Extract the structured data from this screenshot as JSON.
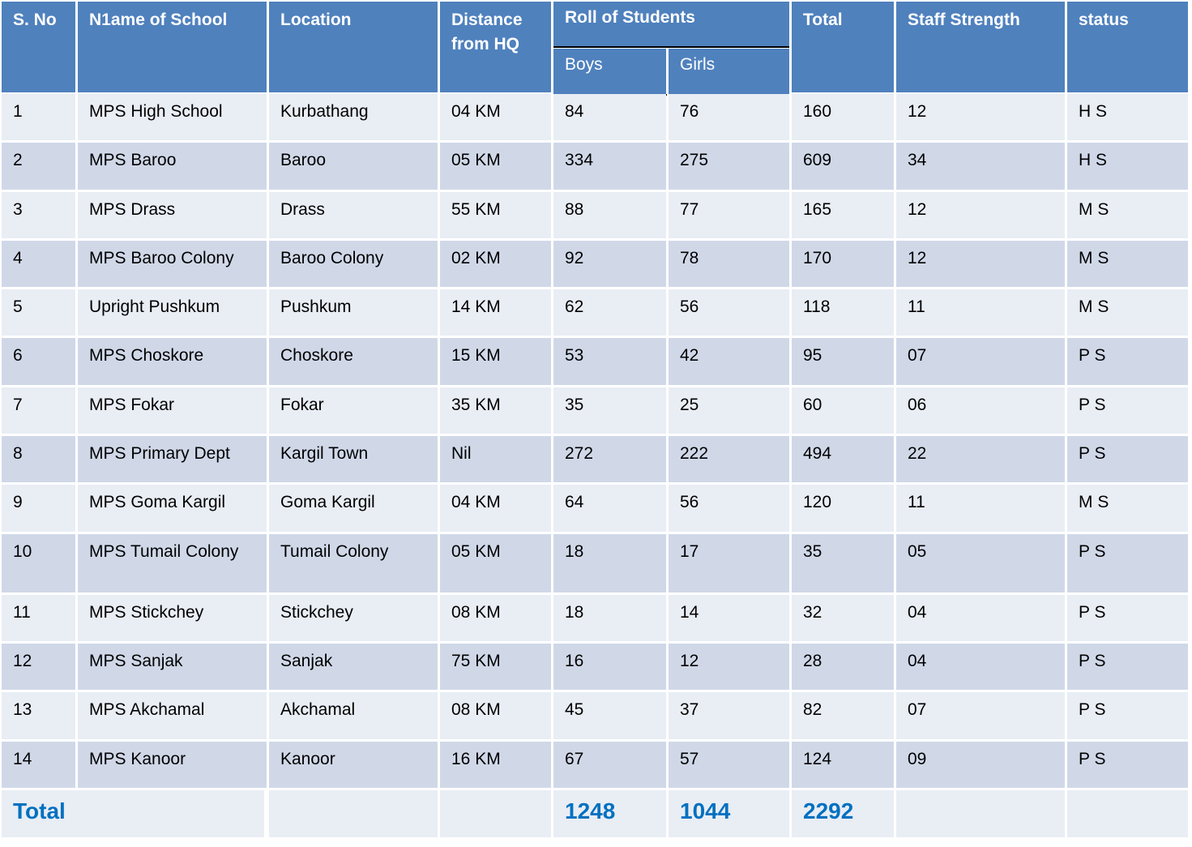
{
  "header": {
    "sno": "S. No",
    "name": "N1ame of School",
    "location": "Location",
    "distance": "Distance from HQ",
    "roll": "Roll of Students",
    "boys": "Boys",
    "girls": "Girls",
    "total": "Total",
    "staff": "Staff Strength",
    "status": "status"
  },
  "rows": [
    {
      "sno": "1",
      "name": "MPS High School",
      "location": "Kurbathang",
      "distance": "04 KM",
      "boys": "84",
      "girls": "76",
      "total": "160",
      "staff": "12",
      "status": "H S"
    },
    {
      "sno": "2",
      "name": "MPS Baroo",
      "location": "Baroo",
      "distance": "05 KM",
      "boys": "334",
      "girls": "275",
      "total": "609",
      "staff": "34",
      "status": "H S"
    },
    {
      "sno": "3",
      "name": "MPS Drass",
      "location": "Drass",
      "distance": "55 KM",
      "boys": "88",
      "girls": "77",
      "total": "165",
      "staff": "12",
      "status": "M S"
    },
    {
      "sno": "4",
      "name": "MPS Baroo Colony",
      "location": "Baroo Colony",
      "distance": "02 KM",
      "boys": "92",
      "girls": "78",
      "total": "170",
      "staff": "12",
      "status": "M S"
    },
    {
      "sno": "5",
      "name": "Upright Pushkum",
      "location": "Pushkum",
      "distance": "14 KM",
      "boys": "62",
      "girls": "56",
      "total": "118",
      "staff": "11",
      "status": "M S"
    },
    {
      "sno": "6",
      "name": "MPS Choskore",
      "location": "Choskore",
      "distance": "15 KM",
      "boys": "53",
      "girls": "42",
      "total": "95",
      "staff": "07",
      "status": "P S"
    },
    {
      "sno": "7",
      "name": "MPS Fokar",
      "location": "Fokar",
      "distance": "35 KM",
      "boys": "35",
      "girls": "25",
      "total": "60",
      "staff": "06",
      "status": "P S"
    },
    {
      "sno": "8",
      "name": "MPS Primary Dept",
      "location": "Kargil Town",
      "distance": "Nil",
      "boys": "272",
      "girls": "222",
      "total": "494",
      "staff": "22",
      "status": "P S"
    },
    {
      "sno": "9",
      "name": "MPS Goma Kargil",
      "location": "Goma Kargil",
      "distance": "04 KM",
      "boys": "64",
      "girls": "56",
      "total": "120",
      "staff": "11",
      "status": "M S"
    },
    {
      "sno": "10",
      "name": "MPS Tumail Colony",
      "location": "Tumail Colony",
      "distance": "05 KM",
      "boys": "18",
      "girls": "17",
      "total": "35",
      "staff": "05",
      "status": "P S"
    },
    {
      "sno": "11",
      "name": "MPS Stickchey",
      "location": "Stickchey",
      "distance": "08 KM",
      "boys": "18",
      "girls": "14",
      "total": "32",
      "staff": "04",
      "status": "P S"
    },
    {
      "sno": "12",
      "name": "MPS Sanjak",
      "location": "Sanjak",
      "distance": "75 KM",
      "boys": "16",
      "girls": "12",
      "total": "28",
      "staff": "04",
      "status": "P S"
    },
    {
      "sno": "13",
      "name": "MPS Akchamal",
      "location": "Akchamal",
      "distance": "08 KM",
      "boys": "45",
      "girls": "37",
      "total": "82",
      "staff": "07",
      "status": "P S"
    },
    {
      "sno": "14",
      "name": "MPS Kanoor",
      "location": "Kanoor",
      "distance": "16 KM",
      "boys": "67",
      "girls": "57",
      "total": "124",
      "staff": "09",
      "status": "P S"
    }
  ],
  "totals": {
    "label": "Total",
    "boys": "1248",
    "girls": "1044",
    "total": "2292"
  },
  "colors": {
    "header_bg": "#4f81bd",
    "row_light": "#e9edf4",
    "row_dark": "#d0d8e8",
    "total_text": "#0070c0"
  }
}
